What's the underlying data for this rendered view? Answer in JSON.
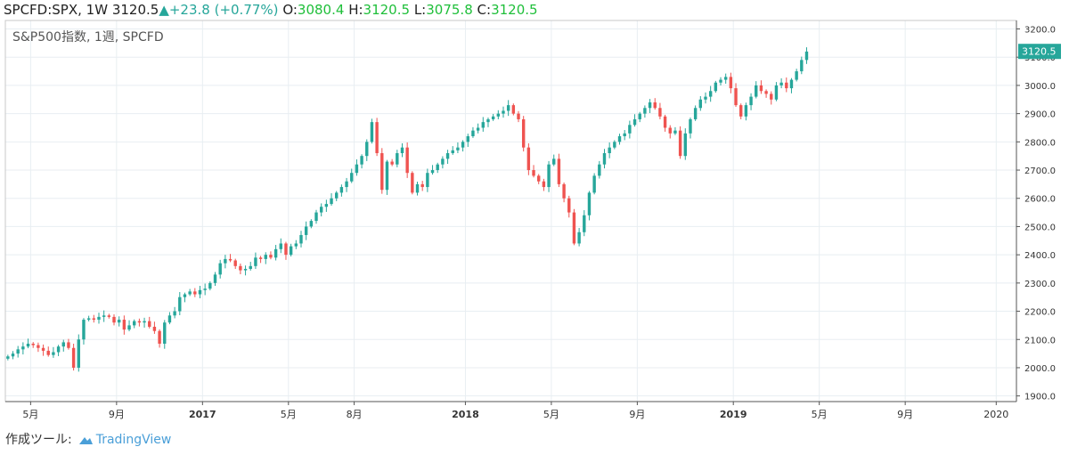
{
  "header": {
    "symbol": "SPCFD:SPX, 1W",
    "last": "3120.5",
    "arrow": "▲",
    "change": "+23.8 (+0.77%)",
    "o_label": "O:",
    "o_value": "3080.4",
    "h_label": "H:",
    "h_value": "3120.5",
    "l_label": "L:",
    "l_value": "3075.8",
    "c_label": "C:",
    "c_value": "3120.5"
  },
  "credit": {
    "prefix": "作成ツール:",
    "brand": "TradingView",
    "logo_icon": "cloud-logo-icon"
  },
  "chart_data": {
    "type": "candlestick",
    "title": "S&P500指数, 1週, SPCFD",
    "last_price_label": "3120.5",
    "y_ticks": [
      "1900.0",
      "2000.0",
      "2100.0",
      "2200.0",
      "2300.0",
      "2400.0",
      "2500.0",
      "2600.0",
      "2700.0",
      "2800.0",
      "2900.0",
      "3000.0",
      "3100.0",
      "3200.0"
    ],
    "ylim": [
      1880,
      3230
    ],
    "x_tick_labels": [
      {
        "label": "5月",
        "week": 5
      },
      {
        "label": "9月",
        "week": 22
      },
      {
        "label": "2017",
        "week": 39,
        "bold": true
      },
      {
        "label": "5月",
        "week": 56
      },
      {
        "label": "8月",
        "week": 69
      },
      {
        "label": "2018",
        "week": 91,
        "bold": true
      },
      {
        "label": "5月",
        "week": 108
      },
      {
        "label": "9月",
        "week": 125
      },
      {
        "label": "2019",
        "week": 144,
        "bold": true
      },
      {
        "label": "5月",
        "week": 161
      },
      {
        "label": "9月",
        "week": 178
      },
      {
        "label": "2020",
        "week": 196
      }
    ],
    "xlim": [
      0,
      200
    ],
    "grid": true,
    "up_color": "#26a69a",
    "down_color": "#ef5350",
    "closes": [
      2040,
      2050,
      2065,
      2075,
      2085,
      2080,
      2070,
      2060,
      2045,
      2055,
      2075,
      2090,
      2070,
      2000,
      2100,
      2170,
      2175,
      2170,
      2180,
      2185,
      2180,
      2160,
      2170,
      2135,
      2150,
      2165,
      2160,
      2165,
      2145,
      2130,
      2085,
      2160,
      2185,
      2200,
      2250,
      2260,
      2270,
      2260,
      2275,
      2280,
      2300,
      2330,
      2370,
      2385,
      2380,
      2360,
      2345,
      2350,
      2360,
      2390,
      2385,
      2400,
      2390,
      2420,
      2440,
      2400,
      2430,
      2440,
      2470,
      2500,
      2520,
      2550,
      2570,
      2580,
      2600,
      2620,
      2640,
      2660,
      2690,
      2720,
      2750,
      2800,
      2870,
      2760,
      2630,
      2730,
      2720,
      2760,
      2780,
      2690,
      2620,
      2650,
      2640,
      2690,
      2700,
      2720,
      2740,
      2760,
      2770,
      2780,
      2800,
      2820,
      2840,
      2850,
      2870,
      2880,
      2890,
      2900,
      2910,
      2930,
      2900,
      2880,
      2780,
      2700,
      2680,
      2660,
      2640,
      2720,
      2740,
      2650,
      2600,
      2550,
      2440,
      2480,
      2540,
      2620,
      2680,
      2720,
      2760,
      2780,
      2800,
      2820,
      2830,
      2860,
      2880,
      2900,
      2920,
      2940,
      2920,
      2890,
      2850,
      2830,
      2840,
      2750,
      2830,
      2880,
      2920,
      2950,
      2960,
      2980,
      3010,
      3020,
      3030,
      2990,
      2930,
      2890,
      2930,
      2960,
      3000,
      2980,
      2970,
      2950,
      3000,
      3010,
      2990,
      3020,
      3050,
      3090,
      3120
    ]
  }
}
